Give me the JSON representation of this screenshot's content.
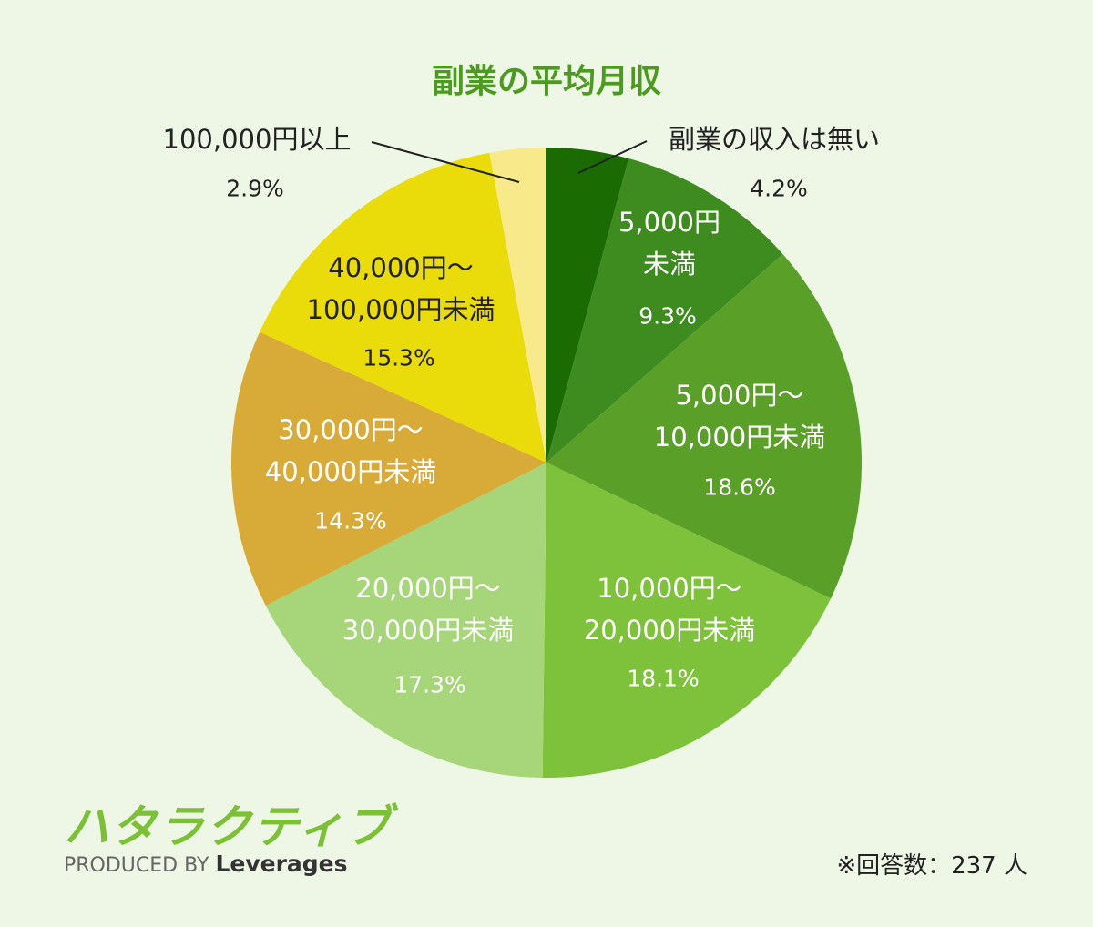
{
  "chart_data": {
    "type": "pie",
    "title": "副業の平均月収",
    "categories": [
      "副業の収入は無い",
      "5,000円\n未満",
      "5,000円〜\n10,000円未満",
      "10,000円〜\n20,000円未満",
      "20,000円〜\n30,000円未満",
      "30,000円〜\n40,000円未満",
      "40,000円〜\n100,000円未満",
      "100,000円以上"
    ],
    "values": [
      4.2,
      9.3,
      18.6,
      18.1,
      17.3,
      14.3,
      15.3,
      2.9
    ],
    "value_labels": [
      "4.2%",
      "9.3%",
      "18.6%",
      "18.1%",
      "17.3%",
      "14.3%",
      "15.3%",
      "2.9%"
    ],
    "colors": [
      "#1a6b02",
      "#3e8b1f",
      "#5a9f27",
      "#7dc23a",
      "#a6d679",
      "#d8aa37",
      "#eadb0a",
      "#f8ea8a"
    ],
    "note": "※回答数：237 人"
  },
  "logo": {
    "name": "ハタラクティブ",
    "produced_by": "PRODUCED BY",
    "company": "Leverages"
  }
}
